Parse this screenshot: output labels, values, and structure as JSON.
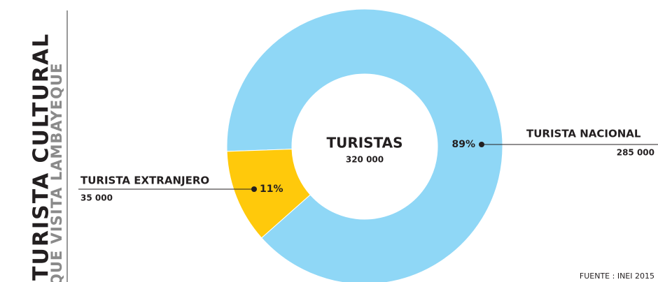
{
  "chart_data": {
    "type": "pie",
    "title": "TURISTA CULTURAL",
    "subtitle": "QUE VISITA LAMBAYEQUE",
    "center_label": "TURISTAS",
    "center_value": "320 000",
    "categories": [
      "TURISTA NACIONAL",
      "TURISTA EXTRANJERO"
    ],
    "values": [
      89,
      11
    ],
    "value_labels": [
      "89%",
      "11%"
    ],
    "counts": [
      "285 000",
      "35 000"
    ],
    "colors": [
      "#8fd7f6",
      "#ffc90b"
    ],
    "source": "FUENTE : INEI 2015"
  }
}
